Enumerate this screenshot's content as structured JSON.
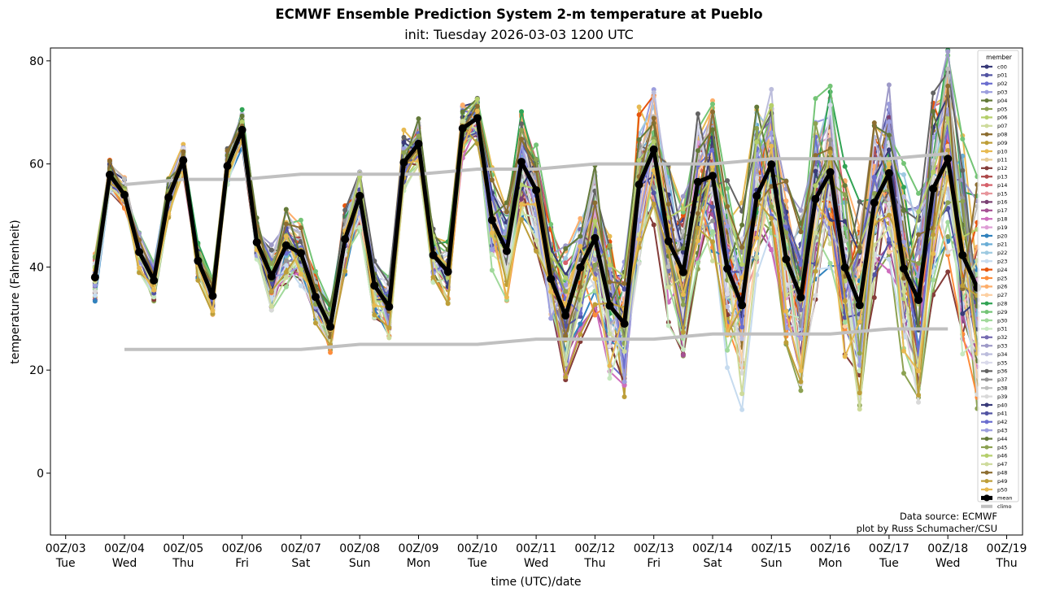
{
  "chart_data": {
    "type": "line",
    "title": "ECMWF Ensemble Prediction System 2-m temperature at Pueblo",
    "subtitle": "init: Tuesday 2026-03-03 1200 UTC",
    "xlabel": "time (UTC)/date",
    "ylabel": "temperature (Fahrenheit)",
    "ylim": [
      -12,
      82.5
    ],
    "xlim_days": [
      2.85,
      19.25
    ],
    "yticks": [
      0,
      20,
      40,
      60,
      80
    ],
    "xticks": [
      {
        "day": 3,
        "label": "00Z/03",
        "dow": "Tue"
      },
      {
        "day": 4,
        "label": "00Z/04",
        "dow": "Wed"
      },
      {
        "day": 5,
        "label": "00Z/05",
        "dow": "Thu"
      },
      {
        "day": 6,
        "label": "00Z/06",
        "dow": "Fri"
      },
      {
        "day": 7,
        "label": "00Z/07",
        "dow": "Sat"
      },
      {
        "day": 8,
        "label": "00Z/08",
        "dow": "Sun"
      },
      {
        "day": 9,
        "label": "00Z/09",
        "dow": "Mon"
      },
      {
        "day": 10,
        "label": "00Z/10",
        "dow": "Tue"
      },
      {
        "day": 11,
        "label": "00Z/11",
        "dow": "Wed"
      },
      {
        "day": 12,
        "label": "00Z/12",
        "dow": "Thu"
      },
      {
        "day": 13,
        "label": "00Z/13",
        "dow": "Fri"
      },
      {
        "day": 14,
        "label": "00Z/14",
        "dow": "Sat"
      },
      {
        "day": 15,
        "label": "00Z/15",
        "dow": "Sun"
      },
      {
        "day": 16,
        "label": "00Z/16",
        "dow": "Mon"
      },
      {
        "day": 17,
        "label": "00Z/17",
        "dow": "Tue"
      },
      {
        "day": 18,
        "label": "00Z/18",
        "dow": "Wed"
      },
      {
        "day": 19,
        "label": "00Z/19",
        "dow": "Thu"
      }
    ],
    "time_start_day": 3.5,
    "time_step_hours": 6,
    "mean": {
      "name": "mean",
      "color": "#000000",
      "values": [
        38.0,
        57.9,
        54.0,
        42.9,
        37.4,
        53.5,
        60.7,
        41.2,
        34.4,
        59.6,
        66.6,
        44.8,
        38.2,
        44.2,
        42.7,
        34.2,
        28.4,
        45.4,
        53.8,
        36.4,
        32.3,
        60.3,
        63.9,
        42.3,
        39.1,
        66.9,
        68.9,
        49.1,
        43.1,
        60.4,
        54.9,
        37.7,
        30.6,
        39.9,
        45.6,
        32.5,
        29.0,
        56.0,
        62.8,
        45.0,
        39.0,
        56.5,
        57.7,
        39.7,
        32.6,
        53.8,
        59.9,
        41.5,
        34.1,
        53.2,
        58.4,
        39.9,
        32.6,
        52.5,
        58.2,
        39.7,
        33.6,
        55.2,
        61.0,
        42.3,
        36.0
      ]
    },
    "spread": [
      4,
      2.5,
      3,
      3,
      3,
      3,
      2.5,
      3,
      3,
      3,
      3,
      4,
      5,
      6,
      5,
      4,
      4,
      6,
      5,
      5,
      5,
      5,
      4,
      4,
      5,
      5,
      4,
      8,
      8,
      9,
      9,
      10,
      11,
      11,
      12,
      12,
      12,
      12,
      11,
      12,
      13,
      13,
      13,
      14,
      15,
      14,
      14,
      15,
      15,
      16,
      16,
      16,
      16,
      16,
      17,
      17,
      18,
      17,
      17,
      18,
      20
    ],
    "climo": {
      "name": "climo",
      "color": "#c0c0c0",
      "days": [
        4,
        5,
        6,
        7,
        8,
        9,
        10,
        11,
        12,
        13,
        14,
        15,
        16,
        17,
        18
      ],
      "high": [
        56,
        57,
        57,
        58,
        58,
        58,
        59,
        59,
        60,
        60,
        60,
        61,
        61,
        61,
        62
      ],
      "low": [
        24,
        24,
        24,
        24,
        25,
        25,
        25,
        26,
        26,
        26,
        27,
        27,
        27,
        28,
        28
      ]
    },
    "legend": {
      "title": "member",
      "position": "top-right",
      "members": [
        {
          "name": "c00",
          "color": "#393b79"
        },
        {
          "name": "p01",
          "color": "#5254a3"
        },
        {
          "name": "p02",
          "color": "#6b6ecf"
        },
        {
          "name": "p03",
          "color": "#9c9ede"
        },
        {
          "name": "p04",
          "color": "#637939"
        },
        {
          "name": "p05",
          "color": "#8ca252"
        },
        {
          "name": "p06",
          "color": "#b5cf6b"
        },
        {
          "name": "p07",
          "color": "#cedb9c"
        },
        {
          "name": "p08",
          "color": "#8c6d31"
        },
        {
          "name": "p09",
          "color": "#bd9e39"
        },
        {
          "name": "p10",
          "color": "#e7ba52"
        },
        {
          "name": "p11",
          "color": "#e7cb94"
        },
        {
          "name": "p12",
          "color": "#843c39"
        },
        {
          "name": "p13",
          "color": "#ad494a"
        },
        {
          "name": "p14",
          "color": "#d6616b"
        },
        {
          "name": "p15",
          "color": "#e7969c"
        },
        {
          "name": "p16",
          "color": "#7b4173"
        },
        {
          "name": "p17",
          "color": "#a55194"
        },
        {
          "name": "p18",
          "color": "#ce6dbd"
        },
        {
          "name": "p19",
          "color": "#de9ed6"
        },
        {
          "name": "p20",
          "color": "#3182bd"
        },
        {
          "name": "p21",
          "color": "#6baed6"
        },
        {
          "name": "p22",
          "color": "#9ecae1"
        },
        {
          "name": "p23",
          "color": "#c6dbef"
        },
        {
          "name": "p24",
          "color": "#e6550d"
        },
        {
          "name": "p25",
          "color": "#fd8d3c"
        },
        {
          "name": "p26",
          "color": "#fdae6b"
        },
        {
          "name": "p27",
          "color": "#fdd0a2"
        },
        {
          "name": "p28",
          "color": "#31a354"
        },
        {
          "name": "p29",
          "color": "#74c476"
        },
        {
          "name": "p30",
          "color": "#a1d99b"
        },
        {
          "name": "p31",
          "color": "#c7e9c0"
        },
        {
          "name": "p32",
          "color": "#756bb1"
        },
        {
          "name": "p33",
          "color": "#9e9ac8"
        },
        {
          "name": "p34",
          "color": "#bcbddc"
        },
        {
          "name": "p35",
          "color": "#dadaeb"
        },
        {
          "name": "p36",
          "color": "#636363"
        },
        {
          "name": "p37",
          "color": "#969696"
        },
        {
          "name": "p38",
          "color": "#bdbdbd"
        },
        {
          "name": "p39",
          "color": "#d9d9d9"
        },
        {
          "name": "p40",
          "color": "#393b79"
        },
        {
          "name": "p41",
          "color": "#5254a3"
        },
        {
          "name": "p42",
          "color": "#6b6ecf"
        },
        {
          "name": "p43",
          "color": "#9c9ede"
        },
        {
          "name": "p44",
          "color": "#637939"
        },
        {
          "name": "p45",
          "color": "#8ca252"
        },
        {
          "name": "p46",
          "color": "#b5cf6b"
        },
        {
          "name": "p47",
          "color": "#cedb9c"
        },
        {
          "name": "p48",
          "color": "#8c6d31"
        },
        {
          "name": "p49",
          "color": "#bd9e39"
        },
        {
          "name": "p50",
          "color": "#e7ba52"
        }
      ],
      "mean_label": "mean",
      "climo_label": "climo"
    },
    "annotations": [
      "Data source: ECMWF",
      "plot by Russ Schumacher/CSU"
    ]
  }
}
